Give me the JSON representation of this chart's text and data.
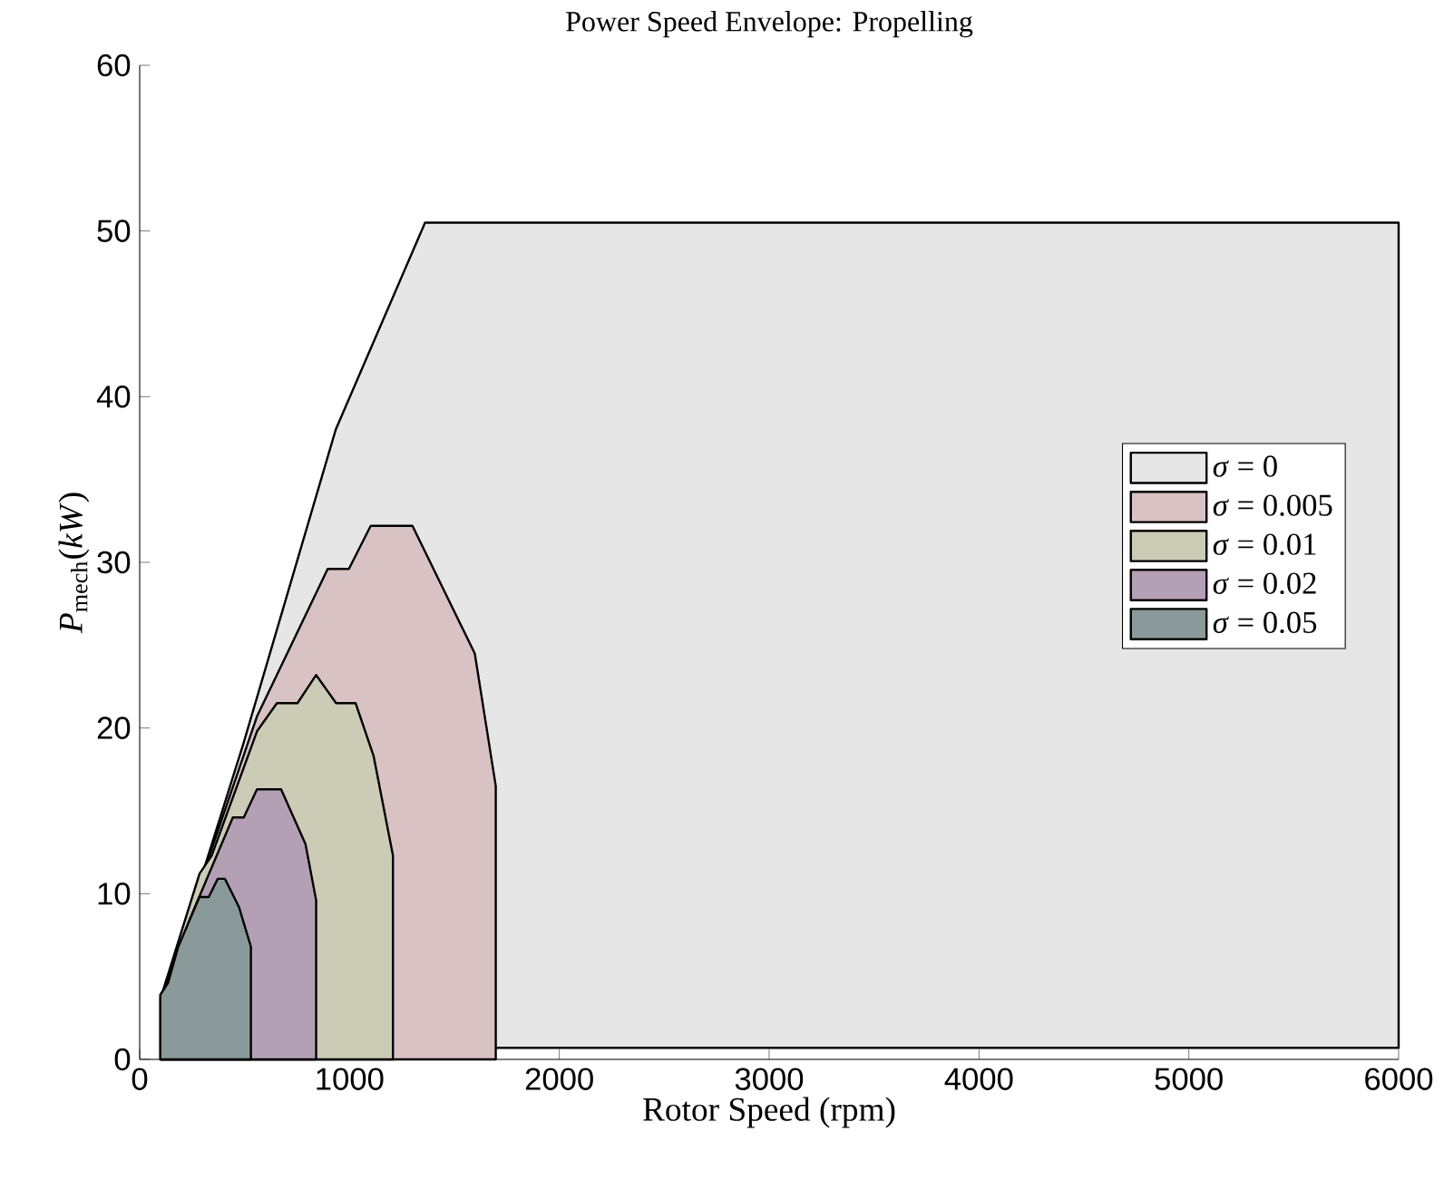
{
  "chart_data": {
    "type": "area",
    "title": "Power Speed Envelope: Propelling",
    "xlabel": "Rotor Speed (rpm)",
    "ylabel": "*P*$_{mech}$(*kW*)",
    "xlim": [
      0,
      6000
    ],
    "ylim": [
      0,
      60
    ],
    "xticks": [
      0,
      1000,
      2000,
      3000,
      4000,
      5000,
      6000
    ],
    "yticks": [
      0,
      10,
      20,
      30,
      40,
      50,
      60
    ],
    "grid": false,
    "legend": "right",
    "series": [
      {
        "name": "*σ* = 0",
        "color": "#e6e6e6",
        "x": [
          100,
          100,
          135,
          493,
          934,
          1360,
          6000,
          6000
        ],
        "values": [
          0.7,
          3.7,
          4.6,
          19.0,
          38.0,
          50.5,
          50.5,
          0.7
        ]
      },
      {
        "name": "*σ* = 0.005",
        "color": "#d9c2c3",
        "x": [
          100,
          100,
          559,
          896,
          997,
          1101,
          1300,
          1597,
          1697,
          1697
        ],
        "values": [
          0,
          3.7,
          20.7,
          29.6,
          29.6,
          32.2,
          32.2,
          24.5,
          16.5,
          0
        ]
      },
      {
        "name": "*σ* = 0.01",
        "color": "#cccbb6",
        "x": [
          100,
          100,
          285,
          343,
          559,
          654,
          752,
          841,
          936,
          1029,
          1115,
          1207,
          1207
        ],
        "values": [
          0,
          3.7,
          11.2,
          12.3,
          19.8,
          21.5,
          21.5,
          23.2,
          21.5,
          21.5,
          18.3,
          12.3,
          0
        ]
      },
      {
        "name": "*σ* = 0.02",
        "color": "#b4a0b4",
        "x": [
          100,
          100,
          240,
          444,
          496,
          559,
          674,
          790,
          841,
          841
        ],
        "values": [
          0,
          3.7,
          8.5,
          14.6,
          14.6,
          16.3,
          16.3,
          13.0,
          9.6,
          0
        ]
      },
      {
        "name": "*σ* = 0.05",
        "color": "#8a9a9a",
        "x": [
          98,
          98,
          135,
          184,
          285,
          329,
          372,
          406,
          473,
          530,
          530
        ],
        "values": [
          0,
          3.9,
          4.6,
          6.8,
          9.8,
          9.8,
          10.9,
          10.9,
          9.2,
          6.8,
          0
        ]
      }
    ]
  }
}
